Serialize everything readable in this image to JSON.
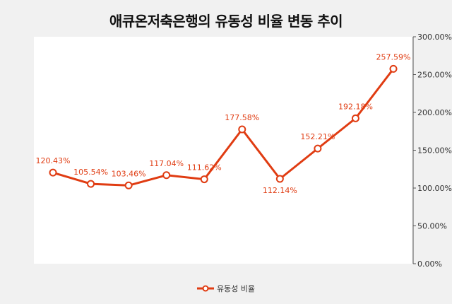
{
  "chart_data": {
    "type": "line",
    "title": "애큐온저축은행의 유동성 비율 변동 추이",
    "categories": [
      "",
      "",
      "",
      "",
      "",
      "",
      "",
      "",
      "",
      ""
    ],
    "series": [
      {
        "name": "유동성 비율",
        "values": [
          120.43,
          105.54,
          103.46,
          117.04,
          111.62,
          177.58,
          112.14,
          152.21,
          192.18,
          257.59
        ],
        "labels": [
          "120.43%",
          "105.54%",
          "103.46%",
          "117.04%",
          "111.62%",
          "177.58%",
          "112.14%",
          "152.21%",
          "192.18%",
          "257.59%"
        ]
      }
    ],
    "ylim": [
      0,
      300
    ],
    "yticks": [
      0,
      50,
      100,
      150,
      200,
      250,
      300
    ],
    "ytick_labels": [
      "0.00%",
      "50.00%",
      "100.00%",
      "150.00%",
      "200.00%",
      "250.00%",
      "300.00%"
    ],
    "y_axis_position": "right",
    "grid": false,
    "legend_position": "bottom",
    "colors": {
      "line": "#e03c12",
      "background": "#f1f1f1",
      "plot_background": "#ffffff"
    }
  }
}
